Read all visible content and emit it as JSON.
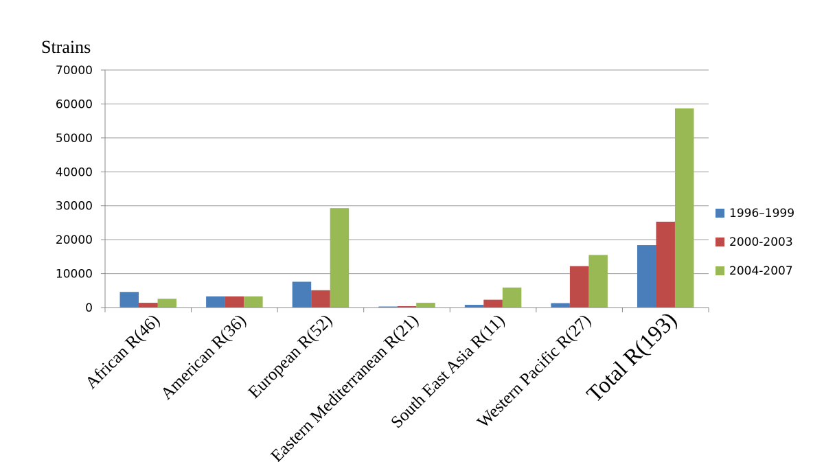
{
  "chart_data": {
    "type": "bar",
    "ylabel": "Strains",
    "xlabel": "",
    "ylim": [
      0,
      70000
    ],
    "yticks": [
      0,
      10000,
      20000,
      30000,
      40000,
      50000,
      60000,
      70000
    ],
    "grid": true,
    "legend_position": "right",
    "categories": [
      "African R(46)",
      "American R(36)",
      "European R(52)",
      "Eastern Mediterranean R(21)",
      "South East Asia R(11)",
      "Western Pacific R(27)",
      "Total R(193)"
    ],
    "series": [
      {
        "name": "1996–1999",
        "color": "#4a7ebb",
        "values": [
          4600,
          3300,
          7600,
          300,
          800,
          1300,
          18400
        ]
      },
      {
        "name": "2000-2003",
        "color": "#be4b48",
        "values": [
          1400,
          3300,
          5100,
          400,
          2300,
          12200,
          25300
        ]
      },
      {
        "name": "2004-2007",
        "color": "#98b954",
        "values": [
          2600,
          3300,
          29300,
          1400,
          5900,
          15500,
          58700
        ]
      }
    ]
  }
}
